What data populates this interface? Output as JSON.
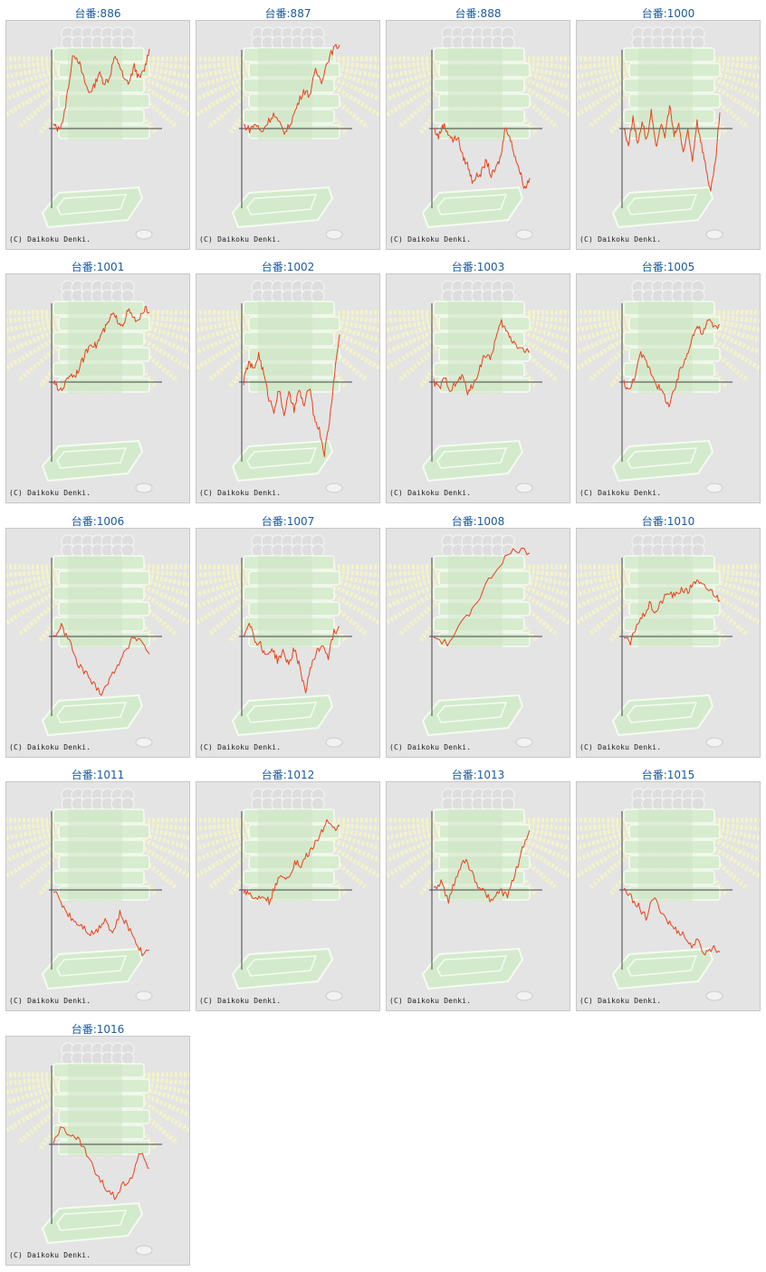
{
  "copyright": "(C) Daikoku Denki.",
  "colors": {
    "line": "#e8431c",
    "axis": "#444444",
    "link": "#1a5a9e",
    "panel": "#e4e4e4"
  },
  "machines": [
    {
      "label": "台番:886",
      "curve": [
        0.04,
        -0.01,
        0.12,
        0.55,
        0.95,
        0.85,
        0.62,
        0.45,
        0.52,
        0.7,
        0.58,
        0.62,
        0.88,
        0.82,
        0.6,
        0.58,
        0.78,
        0.62,
        0.74,
        1.0
      ]
    },
    {
      "label": "台番:887",
      "curve": [
        0.04,
        -0.01,
        0.06,
        -0.05,
        0.08,
        0.18,
        0.05,
        -0.05,
        0.1,
        0.3,
        0.48,
        0.42,
        0.72,
        0.6,
        0.85,
        1.0,
        1.05
      ]
    },
    {
      "label": "台番:888",
      "curve": [
        0.0,
        -0.1,
        0.05,
        -0.05,
        -0.15,
        -0.1,
        -0.35,
        -0.45,
        -0.65,
        -0.6,
        -0.55,
        -0.4,
        -0.6,
        -0.5,
        -0.35,
        0.05,
        -0.15,
        -0.35,
        -0.55,
        -0.75,
        -0.62
      ]
    },
    {
      "label": "台番:1000",
      "curve": [
        0.0,
        -0.2,
        0.15,
        -0.2,
        0.1,
        -0.15,
        0.2,
        -0.25,
        0.05,
        -0.1,
        0.3,
        -0.1,
        0.05,
        -0.3,
        -0.05,
        -0.4,
        0.1,
        -0.2,
        -0.5,
        -0.8,
        -0.45,
        0.2
      ]
    },
    {
      "label": "台番:1001",
      "curve": [
        0.0,
        -0.1,
        -0.05,
        0.1,
        0.08,
        0.2,
        0.35,
        0.5,
        0.45,
        0.6,
        0.7,
        0.85,
        0.78,
        0.72,
        0.9,
        0.8,
        0.75,
        0.92,
        0.88
      ]
    },
    {
      "label": "台番:1002",
      "curve": [
        0.0,
        0.25,
        0.15,
        0.35,
        0.1,
        -0.2,
        -0.35,
        -0.1,
        -0.4,
        -0.15,
        -0.35,
        -0.1,
        -0.3,
        -0.05,
        -0.45,
        -0.6,
        -0.9,
        -0.5,
        0.1,
        0.6
      ]
    },
    {
      "label": "台番:1003",
      "curve": [
        0.0,
        -0.08,
        0.05,
        -0.1,
        -0.02,
        0.08,
        -0.12,
        -0.05,
        0.15,
        0.35,
        0.28,
        0.55,
        0.75,
        0.62,
        0.52,
        0.45,
        0.4,
        0.38
      ]
    },
    {
      "label": "台番:1005",
      "curve": [
        0.0,
        -0.12,
        0.1,
        0.35,
        0.25,
        0.1,
        -0.05,
        -0.15,
        -0.3,
        -0.1,
        0.15,
        0.3,
        0.55,
        0.7,
        0.6,
        0.78,
        0.7,
        0.72
      ]
    },
    {
      "label": "台番:1006",
      "curve": [
        0.0,
        0.12,
        -0.05,
        -0.35,
        -0.45,
        -0.6,
        -0.7,
        -0.55,
        -0.35,
        -0.2,
        0.0,
        -0.05,
        -0.22
      ]
    },
    {
      "label": "台番:1007",
      "curve": [
        0.0,
        0.2,
        -0.05,
        -0.1,
        -0.25,
        -0.15,
        -0.3,
        -0.2,
        -0.35,
        -0.15,
        -0.4,
        -0.7,
        -0.35,
        -0.2,
        -0.1,
        -0.25,
        0.05,
        0.12
      ]
    },
    {
      "label": "台番:1008",
      "curve": [
        0.0,
        -0.1,
        0.15,
        0.4,
        0.7,
        0.95,
        1.1,
        1.05
      ]
    },
    {
      "label": "台番:1010",
      "curve": [
        0.0,
        -0.1,
        0.15,
        0.25,
        0.4,
        0.3,
        0.45,
        0.55,
        0.5,
        0.6,
        0.55,
        0.7,
        0.65,
        0.6,
        0.55,
        0.45
      ]
    },
    {
      "label": "台番:1011",
      "curve": [
        0.0,
        -0.15,
        -0.3,
        -0.4,
        -0.45,
        -0.55,
        -0.5,
        -0.35,
        -0.55,
        -0.3,
        -0.45,
        -0.6,
        -0.8,
        -0.75
      ]
    },
    {
      "label": "台番:1012",
      "curve": [
        0.0,
        -0.05,
        -0.12,
        -0.05,
        -0.15,
        0.05,
        0.2,
        0.15,
        0.35,
        0.3,
        0.45,
        0.55,
        0.7,
        0.85,
        0.75,
        0.8
      ]
    },
    {
      "label": "台番:1013",
      "curve": [
        0.0,
        0.1,
        -0.15,
        0.15,
        0.4,
        0.25,
        0.05,
        -0.05,
        -0.15,
        0.0,
        -0.1,
        0.2,
        0.5,
        0.75
      ]
    },
    {
      "label": "台番:1015",
      "curve": [
        0.0,
        -0.1,
        -0.2,
        -0.35,
        -0.1,
        -0.25,
        -0.4,
        -0.5,
        -0.55,
        -0.7,
        -0.65,
        -0.8,
        -0.72,
        -0.78
      ]
    },
    {
      "label": "台番:1016",
      "curve": [
        0.0,
        0.25,
        0.1,
        0.05,
        -0.15,
        -0.4,
        -0.55,
        -0.65,
        -0.5,
        -0.4,
        -0.1,
        -0.3
      ]
    }
  ]
}
